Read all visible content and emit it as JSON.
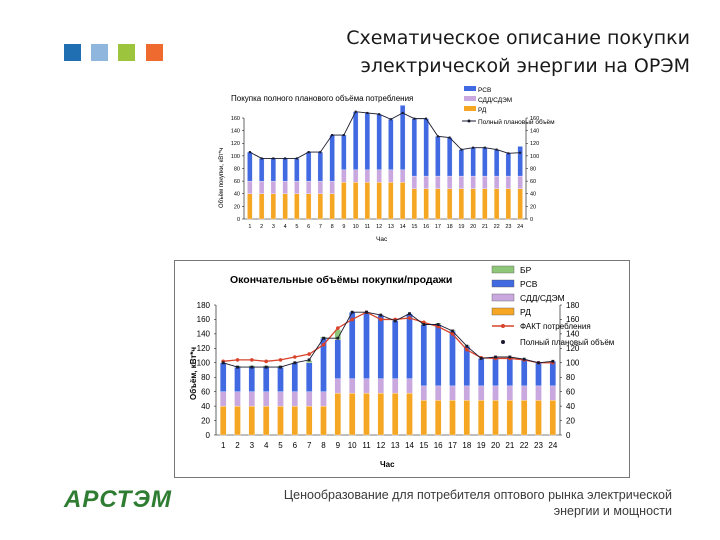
{
  "header": {
    "title_line1": "Схематическое описание покупки",
    "title_line2": "электрической энергии на ОРЭМ",
    "squares": [
      "#1f6fb2",
      "#8fb6dc",
      "#9cc43c",
      "#ee6a2e"
    ]
  },
  "logo": {
    "text": "АРСТЭМ"
  },
  "footer": {
    "line1": "Ценообразование для потребителя оптового рынка электрической",
    "line2": "энергии и мощности"
  },
  "colors": {
    "rd": "#f5a623",
    "sdd": "#c9a8e0",
    "rsv": "#4169e1",
    "br": "#8fc77a",
    "fact": "#d9432b",
    "plan": "#1a1a2e"
  },
  "chart_data": [
    {
      "type": "bar",
      "title": "Покупка полного планового объёма потребления",
      "xlabel": "Час",
      "ylabel": "Объём покупки, кВт*ч",
      "ylim": [
        0,
        160
      ],
      "yticks": [
        "0",
        "20",
        "40",
        "60",
        "80",
        "100",
        "120",
        "140",
        "160"
      ],
      "categories": [
        "1",
        "2",
        "3",
        "4",
        "5",
        "6",
        "7",
        "8",
        "9",
        "10",
        "11",
        "12",
        "13",
        "14",
        "15",
        "16",
        "17",
        "18",
        "19",
        "20",
        "21",
        "22",
        "23",
        "24"
      ],
      "series": [
        {
          "name": "РД",
          "values": [
            40,
            40,
            40,
            40,
            40,
            40,
            40,
            40,
            58,
            58,
            58,
            58,
            58,
            58,
            48,
            48,
            48,
            48,
            48,
            48,
            48,
            48,
            48,
            48
          ]
        },
        {
          "name": "СДД/СДЭМ",
          "values": [
            20,
            20,
            20,
            20,
            20,
            20,
            20,
            20,
            20,
            20,
            20,
            20,
            20,
            20,
            20,
            20,
            20,
            20,
            20,
            20,
            20,
            20,
            20,
            20
          ]
        },
        {
          "name": "РСВ",
          "values": [
            46,
            36,
            36,
            36,
            36,
            46,
            46,
            73,
            55,
            92,
            90,
            88,
            80,
            102,
            91,
            91,
            63,
            61,
            42,
            45,
            45,
            42,
            36,
            47
          ]
        }
      ],
      "line": {
        "name": "Полный плановый объём",
        "values": [
          106,
          96,
          96,
          96,
          96,
          106,
          106,
          133,
          133,
          170,
          168,
          166,
          158,
          168,
          159,
          159,
          131,
          129,
          110,
          113,
          113,
          110,
          104,
          105
        ]
      },
      "legend": [
        "РСВ",
        "СДД/СДЭМ",
        "РД",
        "Полный плановый объём"
      ]
    },
    {
      "type": "bar",
      "title": "Окончательные объёмы покупки/продажи",
      "xlabel": "Час",
      "ylabel": "Объём, кВт*ч",
      "ylim": [
        0,
        180
      ],
      "yticks": [
        "0",
        "20",
        "40",
        "60",
        "80",
        "100",
        "120",
        "140",
        "160",
        "180"
      ],
      "categories": [
        "1",
        "2",
        "3",
        "4",
        "5",
        "6",
        "7",
        "8",
        "9",
        "10",
        "11",
        "12",
        "13",
        "14",
        "15",
        "16",
        "17",
        "18",
        "19",
        "20",
        "21",
        "22",
        "23",
        "24"
      ],
      "series": [
        {
          "name": "РД",
          "values": [
            40,
            40,
            40,
            40,
            40,
            40,
            40,
            40,
            58,
            58,
            58,
            58,
            58,
            58,
            48,
            48,
            48,
            48,
            48,
            48,
            48,
            48,
            48,
            48
          ]
        },
        {
          "name": "СДД/СДЭМ",
          "values": [
            20,
            20,
            20,
            20,
            20,
            20,
            20,
            20,
            20,
            20,
            20,
            20,
            20,
            20,
            20,
            20,
            20,
            20,
            20,
            20,
            20,
            20,
            20,
            20
          ]
        },
        {
          "name": "РСВ",
          "values": [
            40,
            34,
            34,
            34,
            34,
            40,
            40,
            74,
            54,
            92,
            92,
            88,
            80,
            90,
            85,
            85,
            76,
            55,
            38,
            40,
            40,
            37,
            32,
            34
          ]
        },
        {
          "name": "БР",
          "values": [
            0,
            2,
            2,
            2,
            2,
            1,
            3,
            2,
            14,
            0,
            0,
            0,
            0,
            0,
            2,
            2,
            2,
            1,
            0,
            0,
            0,
            0,
            0,
            0
          ]
        }
      ],
      "lines": [
        {
          "name": "ФАКТ потребления",
          "values": [
            102,
            104,
            104,
            102,
            104,
            108,
            112,
            125,
            148,
            160,
            170,
            160,
            160,
            162,
            156,
            150,
            140,
            118,
            107,
            106,
            106,
            104,
            100,
            100
          ]
        },
        {
          "name": "Полный плановый объём",
          "values": [
            100,
            94,
            94,
            94,
            94,
            100,
            104,
            134,
            134,
            170,
            170,
            166,
            158,
            168,
            153,
            153,
            144,
            123,
            106,
            108,
            108,
            105,
            100,
            102
          ]
        }
      ],
      "legend": [
        "БР",
        "РСВ",
        "СДД/СДЭМ",
        "РД",
        "ФАКТ потребления",
        "Полный плановый объём"
      ]
    }
  ]
}
